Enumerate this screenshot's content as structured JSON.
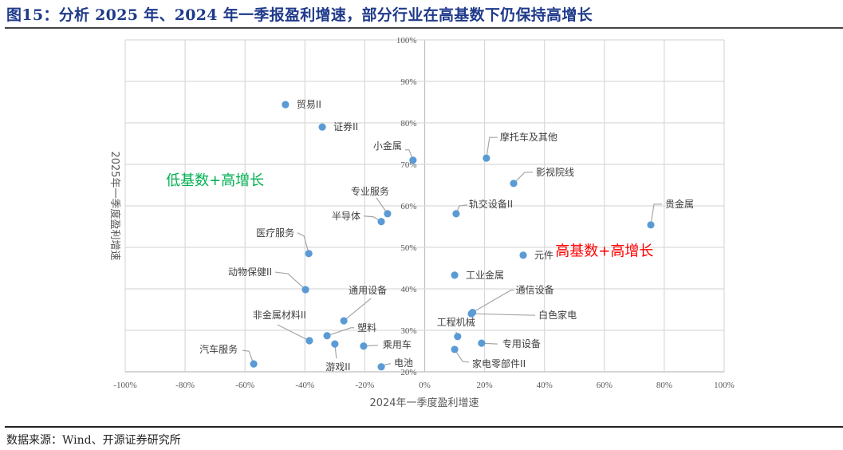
{
  "header": {
    "title": "图15：分析 2025 年、2024 年一季报盈利增速，部分行业在高基数下仍保持高增长"
  },
  "footer": {
    "source": "数据来源：Wind、开源证券研究所"
  },
  "colors": {
    "title": "#1f3a8a",
    "point": "#5b9bd5",
    "grid": "#d9d9d9",
    "low_base_annotation": "#00b050",
    "high_base_annotation": "#ff0000"
  },
  "chart_data": {
    "type": "scatter",
    "title": "分析 2025 年、2024 年一季报盈利增速，部分行业在高基数下仍保持高增长",
    "xlabel": "2024年一季度盈利增速",
    "ylabel": "2025年一季度盈利增速",
    "xlim": [
      -100,
      100
    ],
    "ylim": [
      20,
      100
    ],
    "x_ticks": [
      "-100%",
      "-80%",
      "-60%",
      "-40%",
      "-20%",
      "0%",
      "20%",
      "40%",
      "60%",
      "80%",
      "100%"
    ],
    "y_ticks": [
      "20%",
      "30%",
      "40%",
      "50%",
      "60%",
      "70%",
      "80%",
      "90%",
      "100%"
    ],
    "grid": true,
    "legend": null,
    "annotations": [
      {
        "text": "低基数+高增长",
        "color": "#00b050",
        "x": -70,
        "y": 65
      },
      {
        "text": "高基数+高增长",
        "color": "#ff0000",
        "x": 60,
        "y": 48
      }
    ],
    "points": [
      {
        "label": "贸易II",
        "x": -46.5,
        "y": 84.4
      },
      {
        "label": "证券II",
        "x": -34.2,
        "y": 79.0
      },
      {
        "label": "小金属",
        "x": -3.9,
        "y": 71.0
      },
      {
        "label": "摩托车及其他",
        "x": 20.6,
        "y": 71.5
      },
      {
        "label": "影视院线",
        "x": 29.7,
        "y": 65.4
      },
      {
        "label": "专业服务",
        "x": -12.4,
        "y": 58.1
      },
      {
        "label": "半导体",
        "x": -14.5,
        "y": 56.2
      },
      {
        "label": "轨交设备II",
        "x": 10.5,
        "y": 58.1
      },
      {
        "label": "贵金属",
        "x": 75.5,
        "y": 55.4
      },
      {
        "label": "医疗服务",
        "x": -38.7,
        "y": 48.5
      },
      {
        "label": "元件",
        "x": 32.9,
        "y": 48.1
      },
      {
        "label": "动物保健II",
        "x": -39.8,
        "y": 39.8
      },
      {
        "label": "工业金属",
        "x": 10.0,
        "y": 43.3
      },
      {
        "label": "通用设备",
        "x": -27.0,
        "y": 32.3
      },
      {
        "label": "通信设备",
        "x": 16.0,
        "y": 34.3
      },
      {
        "label": "白色家电",
        "x": 15.6,
        "y": 34.0
      },
      {
        "label": "塑料",
        "x": -32.6,
        "y": 28.7
      },
      {
        "label": "非金属材料II",
        "x": -38.5,
        "y": 27.5
      },
      {
        "label": "游戏II",
        "x": -30.0,
        "y": 26.7
      },
      {
        "label": "工程机械",
        "x": 11.0,
        "y": 28.5
      },
      {
        "label": "专用设备",
        "x": 19.0,
        "y": 26.9
      },
      {
        "label": "乘用车",
        "x": -20.4,
        "y": 26.2
      },
      {
        "label": "家电零部件II",
        "x": 10.0,
        "y": 25.4
      },
      {
        "label": "汽车服务",
        "x": -57.1,
        "y": 21.9
      },
      {
        "label": "电池",
        "x": -14.5,
        "y": 21.2
      }
    ]
  }
}
